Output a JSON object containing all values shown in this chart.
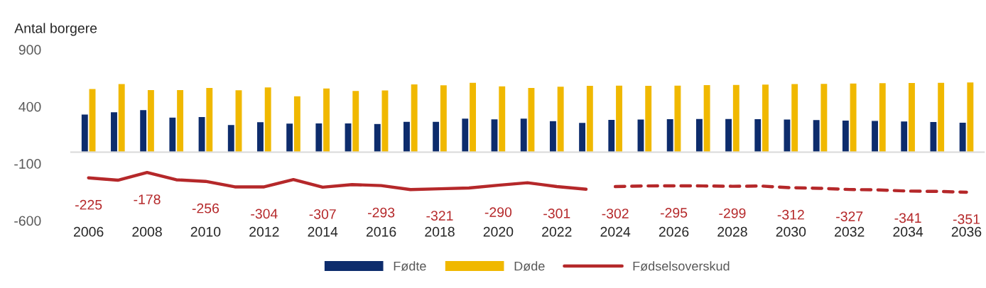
{
  "chart_data": {
    "type": "bar",
    "ylabel": "Antal borgere",
    "categories": [
      "2006",
      null,
      "2008",
      null,
      "2010",
      null,
      "2012",
      null,
      "2014",
      null,
      "2016",
      null,
      "2018",
      null,
      "2020",
      null,
      "2022",
      null,
      "2024",
      null,
      "2026",
      null,
      "2028",
      null,
      "2030",
      null,
      "2032",
      null,
      "2034",
      null,
      "2036"
    ],
    "series": [
      {
        "name": "Fødte",
        "color": "#0d2c6c",
        "values": [
          334,
          355,
          373,
          307,
          313,
          243,
          268,
          255,
          257,
          257,
          251,
          271,
          271,
          299,
          292,
          299,
          276,
          261,
          288,
          290,
          294,
          296,
          296,
          294,
          290,
          286,
          282,
          278,
          274,
          269,
          263
        ]
      },
      {
        "name": "Døde",
        "color": "#f0b800",
        "values": [
          558,
          601,
          549,
          549,
          567,
          547,
          572,
          495,
          563,
          541,
          545,
          599,
          591,
          613,
          582,
          567,
          578,
          586,
          588,
          586,
          588,
          592,
          594,
          597,
          601,
          603,
          607,
          609,
          611,
          613,
          615
        ]
      },
      {
        "name": "Fødselsoverskud",
        "type": "line",
        "color": "#b5282a",
        "line_style": "solid",
        "values": [
          -225,
          -246,
          -178,
          -242,
          -256,
          -304,
          -304,
          -240,
          -307,
          -284,
          -293,
          -328,
          -321,
          -314,
          -290,
          -268,
          -301,
          -325,
          null,
          null,
          null,
          null,
          null,
          null,
          null,
          null,
          null,
          null,
          null,
          null,
          null
        ],
        "value_labels": [
          "-225",
          null,
          "-178",
          null,
          "-256",
          null,
          "-304",
          null,
          "-307",
          null,
          "-293",
          null,
          "-321",
          null,
          "-290",
          null,
          "-301",
          null,
          null,
          null,
          null,
          null,
          null,
          null,
          null,
          null,
          null,
          null,
          null,
          null,
          null
        ]
      },
      {
        "type": "line",
        "color": "#b5282a",
        "line_style": "dashed",
        "values": [
          null,
          null,
          null,
          null,
          null,
          null,
          null,
          null,
          null,
          null,
          null,
          null,
          null,
          null,
          null,
          null,
          null,
          null,
          -302,
          -296,
          -295,
          -296,
          -299,
          -297,
          -312,
          -317,
          -327,
          -331,
          -341,
          -344,
          -351
        ],
        "value_labels": [
          null,
          null,
          null,
          null,
          null,
          null,
          null,
          null,
          null,
          null,
          null,
          null,
          null,
          null,
          null,
          null,
          null,
          null,
          "-302",
          null,
          "-295",
          null,
          "-299",
          null,
          "-312",
          null,
          "-327",
          null,
          "-341",
          null,
          "-351"
        ]
      }
    ],
    "ylim": [
      -600,
      900
    ],
    "yticks": [
      900,
      400,
      -100,
      -600
    ],
    "grid": false,
    "legend": "bottom"
  }
}
